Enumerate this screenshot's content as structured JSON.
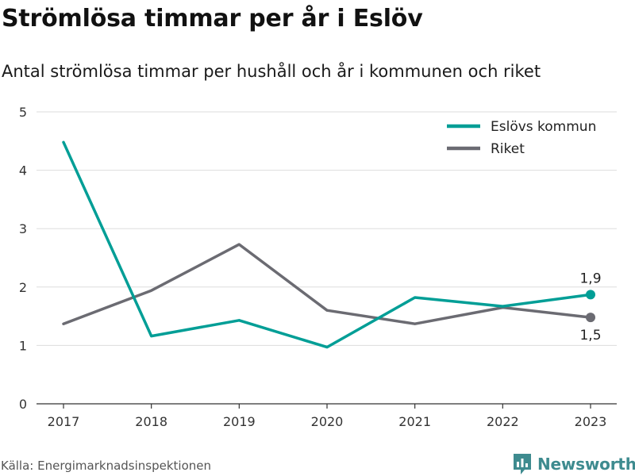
{
  "header": {
    "title": "Strömlösa timmar per år i Eslöv",
    "subtitle": "Antal strömlösa timmar per hushåll och år i kommunen och riket"
  },
  "footer": {
    "source": "Källa: Energimarknadsinspektionen",
    "brand": "Newsworthy"
  },
  "colors": {
    "eslov": "#009e96",
    "riket": "#6b6b72",
    "grid": "#dddddd",
    "axis": "#333333",
    "brand": "#3e8b8f"
  },
  "icons": {
    "logo": "bar-chart-speech-icon"
  },
  "chart_data": {
    "type": "line",
    "x": [
      "2017",
      "2018",
      "2019",
      "2020",
      "2021",
      "2022",
      "2023"
    ],
    "series": [
      {
        "name": "Eslövs kommun",
        "color": "#009e96",
        "values": [
          4.48,
          1.16,
          1.43,
          0.97,
          1.82,
          1.67,
          1.87
        ]
      },
      {
        "name": "Riket",
        "color": "#6b6b72",
        "values": [
          1.37,
          1.94,
          2.73,
          1.6,
          1.37,
          1.65,
          1.48
        ]
      }
    ],
    "ylim": [
      0,
      5
    ],
    "yticks": [
      "0",
      "1",
      "2",
      "3",
      "4",
      "5"
    ],
    "end_labels": [
      "1,9",
      "1,5"
    ],
    "grid": true,
    "legend": "top-right"
  }
}
